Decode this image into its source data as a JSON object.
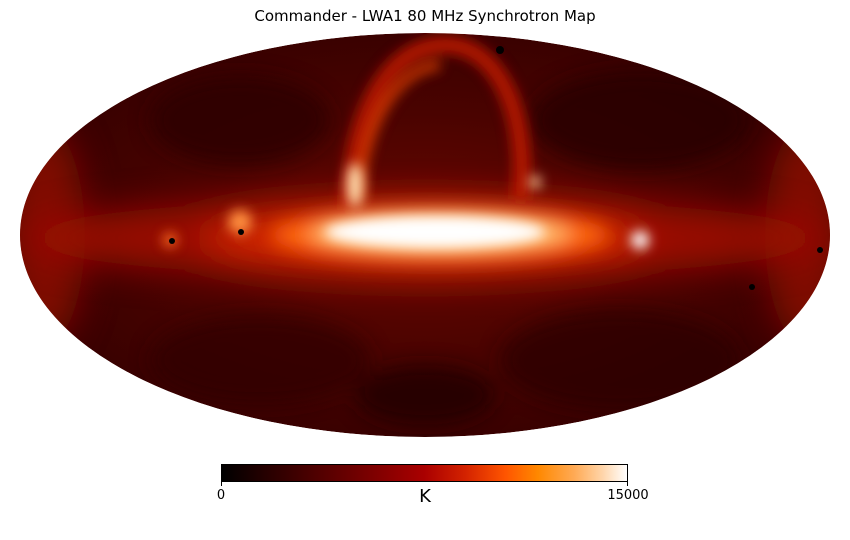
{
  "figure": {
    "title": "Commander - LWA1 80 MHz Synchrotron Map",
    "projection": "Mollweide all-sky",
    "colormap": "gist_heat",
    "colorbar": {
      "min_label": "0",
      "max_label": "15000",
      "unit": "K",
      "min": 0,
      "max": 15000
    },
    "colors": {
      "background": "#ffffff",
      "low": "#000000",
      "mid": "#aa0000",
      "high": "#ffffff"
    }
  }
}
